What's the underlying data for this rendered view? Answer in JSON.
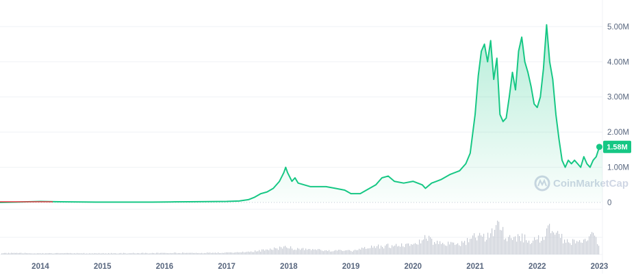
{
  "chart_data": {
    "type": "area",
    "title": "",
    "xlabel": "",
    "ylabel": "",
    "xlim": [
      2013.35,
      2023.05
    ],
    "ylim": [
      0,
      5600000
    ],
    "y_ticks": [
      {
        "value": 0,
        "label": "0"
      },
      {
        "value": 1000000,
        "label": "1.00M"
      },
      {
        "value": 2000000,
        "label": "2.00M"
      },
      {
        "value": 3000000,
        "label": "3.00M"
      },
      {
        "value": 4000000,
        "label": "4.00M"
      },
      {
        "value": 5000000,
        "label": "5.00M"
      }
    ],
    "x_ticks": [
      {
        "value": 2014,
        "label": "2014"
      },
      {
        "value": 2015,
        "label": "2015"
      },
      {
        "value": 2016,
        "label": "2016"
      },
      {
        "value": 2017,
        "label": "2017"
      },
      {
        "value": 2018,
        "label": "2018"
      },
      {
        "value": 2019,
        "label": "2019"
      },
      {
        "value": 2020,
        "label": "2020"
      },
      {
        "value": 2021,
        "label": "2021"
      },
      {
        "value": 2022,
        "label": "2022"
      },
      {
        "value": 2023,
        "label": "2023"
      }
    ],
    "current_value_label": "1.58M",
    "current_value": 1580000,
    "grid": true,
    "legend": "none",
    "colors": {
      "line": "#16c784",
      "early_line": "#ea3943",
      "badge": "#16c784"
    },
    "series": [
      {
        "x": [
          2013.35,
          2013.6,
          2013.8,
          2014.0,
          2014.3,
          2014.6,
          2014.9,
          2015.2,
          2015.5,
          2015.8,
          2016.1,
          2016.4,
          2016.7,
          2017.0,
          2017.2,
          2017.35,
          2017.45,
          2017.55,
          2017.65,
          2017.75,
          2017.85,
          2017.92,
          2017.95,
          2017.98,
          2018.05,
          2018.1,
          2018.15,
          2018.25,
          2018.35,
          2018.45,
          2018.6,
          2018.75,
          2018.9,
          2019.0,
          2019.15,
          2019.3,
          2019.4,
          2019.5,
          2019.6,
          2019.7,
          2019.85,
          2020.0,
          2020.15,
          2020.2,
          2020.3,
          2020.45,
          2020.6,
          2020.75,
          2020.85,
          2020.92,
          2021.0,
          2021.05,
          2021.1,
          2021.15,
          2021.2,
          2021.25,
          2021.3,
          2021.35,
          2021.4,
          2021.45,
          2021.5,
          2021.55,
          2021.6,
          2021.65,
          2021.7,
          2021.75,
          2021.8,
          2021.85,
          2021.9,
          2021.95,
          2022.0,
          2022.05,
          2022.1,
          2022.15,
          2022.2,
          2022.25,
          2022.3,
          2022.35,
          2022.4,
          2022.45,
          2022.5,
          2022.55,
          2022.6,
          2022.65,
          2022.7,
          2022.75,
          2022.8,
          2022.85,
          2022.9,
          2022.95,
          2023.0,
          2023.05
        ],
        "y": [
          0,
          10000,
          20000,
          30000,
          20000,
          15000,
          10000,
          10000,
          10000,
          10000,
          15000,
          20000,
          25000,
          30000,
          40000,
          80000,
          150000,
          250000,
          300000,
          400000,
          600000,
          850000,
          1000000,
          850000,
          600000,
          700000,
          550000,
          500000,
          450000,
          450000,
          450000,
          400000,
          350000,
          250000,
          250000,
          400000,
          500000,
          700000,
          750000,
          600000,
          550000,
          600000,
          500000,
          400000,
          550000,
          650000,
          800000,
          900000,
          1100000,
          1400000,
          2500000,
          3600000,
          4300000,
          4500000,
          4000000,
          4600000,
          3500000,
          4100000,
          2500000,
          2300000,
          2400000,
          3000000,
          3700000,
          3200000,
          4300000,
          4700000,
          4000000,
          3700000,
          3300000,
          2800000,
          2700000,
          3000000,
          3800000,
          5050000,
          4000000,
          3500000,
          2500000,
          1800000,
          1200000,
          1000000,
          1200000,
          1100000,
          1200000,
          1100000,
          1000000,
          1300000,
          1100000,
          1000000,
          1200000,
          1300000,
          1580000,
          1580000
        ]
      }
    ],
    "volume": {
      "x": [
        2013.35,
        2014.0,
        2015.0,
        2016.0,
        2017.0,
        2017.5,
        2017.92,
        2018.2,
        2018.6,
        2019.0,
        2019.4,
        2019.7,
        2020.0,
        2020.2,
        2020.5,
        2020.8,
        2021.0,
        2021.1,
        2021.3,
        2021.38,
        2021.5,
        2021.7,
        2021.9,
        2022.0,
        2022.2,
        2022.4,
        2022.6,
        2022.8,
        2022.88,
        2022.95,
        2023.05
      ],
      "y": [
        0.05,
        0.04,
        0.04,
        0.05,
        0.06,
        0.12,
        0.25,
        0.18,
        0.14,
        0.12,
        0.28,
        0.3,
        0.33,
        0.55,
        0.35,
        0.38,
        0.72,
        0.55,
        0.8,
        1.0,
        0.55,
        0.6,
        0.48,
        0.5,
        0.85,
        0.55,
        0.42,
        0.45,
        0.9,
        0.42,
        0.35
      ]
    }
  },
  "watermark": {
    "text": "CoinMarketCap"
  }
}
